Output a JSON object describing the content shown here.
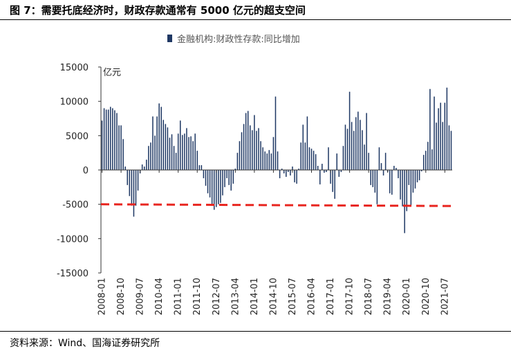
{
  "figure": {
    "title": "图 7：需要托底经济时，财政存款通常有 5000 亿元的超支空间",
    "source": "资料来源：Wind、国海证券研究所"
  },
  "chart_data": {
    "type": "bar",
    "legend": {
      "label": "金融机构:财政性存款:同比增加",
      "position": "top"
    },
    "unit": "亿元",
    "ylim": [
      -15000,
      15000
    ],
    "yticks": [
      15000,
      10000,
      5000,
      0,
      -5000,
      -10000,
      -15000
    ],
    "xticks": [
      "2008-01",
      "2008-10",
      "2009-07",
      "2010-04",
      "2011-01",
      "2011-10",
      "2012-07",
      "2013-04",
      "2014-01",
      "2014-10",
      "2015-07",
      "2016-04",
      "2017-01",
      "2017-10",
      "2018-07",
      "2019-04",
      "2020-01",
      "2020-10",
      "2021-07"
    ],
    "start": "2008-01",
    "series": [
      {
        "name": "金融机构:财政性存款:同比增加",
        "color": "#1f3864",
        "values": [
          7200,
          9000,
          8800,
          8800,
          9200,
          9000,
          8700,
          8300,
          6500,
          6500,
          4500,
          500,
          -2200,
          -3800,
          -5200,
          -6800,
          -5200,
          -3000,
          -500,
          800,
          500,
          1500,
          3500,
          4000,
          7800,
          5000,
          7800,
          9700,
          9200,
          7300,
          6700,
          6200,
          4700,
          5200,
          3500,
          2500,
          5300,
          7200,
          5100,
          5300,
          6100,
          4800,
          4900,
          4200,
          5300,
          2800,
          700,
          700,
          -1200,
          -2300,
          -3400,
          -4000,
          -5000,
          -5800,
          -5400,
          -5000,
          -4800,
          -3700,
          -2500,
          -1200,
          -2200,
          -3000,
          -2000,
          200,
          2500,
          4200,
          5500,
          6700,
          8300,
          8600,
          6500,
          5800,
          8000,
          5700,
          6100,
          4200,
          3300,
          2700,
          2400,
          2900,
          2400,
          4800,
          10700,
          2700,
          -1200,
          200,
          -500,
          -1000,
          -300,
          -800,
          500,
          -1800,
          -2000,
          200,
          4000,
          6600,
          4000,
          7800,
          3300,
          3100,
          2800,
          2300,
          600,
          -2100,
          900,
          -400,
          -300,
          3300,
          -2000,
          -3200,
          -4200,
          2400,
          -1000,
          -300,
          3500,
          6600,
          6000,
          11400,
          7000,
          5700,
          7700,
          8500,
          7300,
          5800,
          3700,
          8300,
          2500,
          -2200,
          -2500,
          -3300,
          -5000,
          3300,
          1000,
          -800,
          2500,
          -300,
          -3400,
          -3600,
          600,
          300,
          -1200,
          -4300,
          -5300,
          -9200,
          -6000,
          -2200,
          -5200,
          -3300,
          -2700,
          -1800,
          -1500,
          -200,
          2200,
          2800,
          4100,
          11800,
          3000,
          10700,
          6900,
          9000,
          9800,
          7000,
          9800,
          12000,
          6500,
          5700
        ]
      }
    ],
    "annotations": [
      {
        "type": "dashed-line",
        "color": "#e8251f",
        "y_start": -5000,
        "y_end": -5250
      }
    ]
  }
}
